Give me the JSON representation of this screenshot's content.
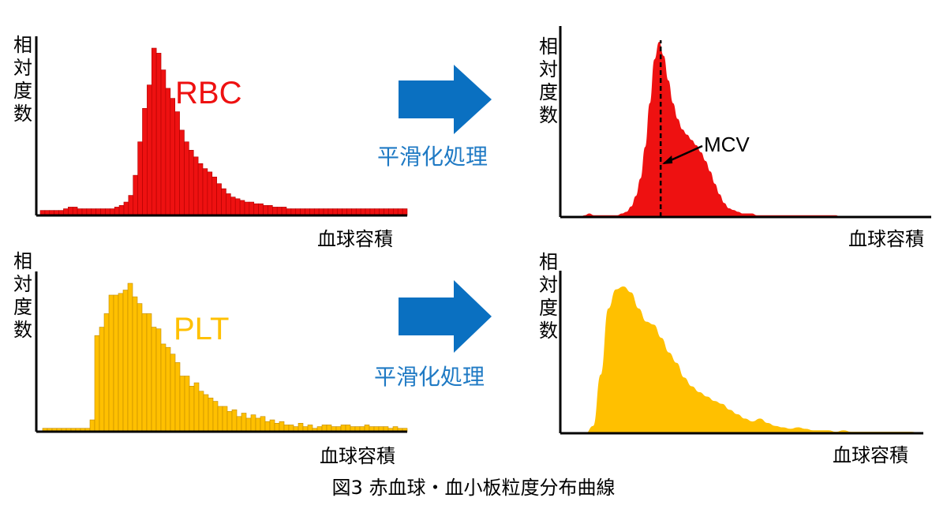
{
  "colors": {
    "rbc": "#ee1111",
    "plt": "#ffc000",
    "arrow": "#0a70c1",
    "label_blue": "#1f7ac4"
  },
  "y_label": "相対度数",
  "x_label": "血球容積",
  "smoothing_label": "平滑化処理",
  "caption": "図3 赤血球・血小板粒度分布曲線",
  "rbc": {
    "name": "RBC",
    "mcv_label": "MCV"
  },
  "plt": {
    "name": "PLT"
  },
  "chart_data": [
    {
      "type": "bar",
      "series_name": "RBC",
      "values": [
        3,
        3,
        3,
        3,
        3,
        4,
        5,
        5,
        4,
        4,
        4,
        4,
        4,
        4,
        4,
        4,
        5,
        6,
        8,
        12,
        24,
        44,
        64,
        78,
        100,
        97,
        87,
        76,
        70,
        62,
        51,
        44,
        39,
        35,
        31,
        28,
        26,
        23,
        19,
        16,
        13,
        11,
        10,
        9,
        8,
        8,
        7,
        7,
        6,
        6,
        5,
        5,
        5,
        4,
        4,
        4,
        4,
        4,
        4,
        4,
        4,
        4,
        4,
        4,
        4,
        4,
        4,
        4,
        4,
        4,
        4,
        4,
        4,
        4,
        4,
        4,
        4,
        4,
        4
      ]
    },
    {
      "type": "area",
      "series_name": "RBC smoothed",
      "values": [
        0,
        1,
        2,
        1,
        1,
        1,
        1,
        1,
        1,
        2,
        3,
        6,
        12,
        22,
        40,
        65,
        90,
        100,
        92,
        78,
        65,
        56,
        50,
        47,
        44,
        41,
        37,
        32,
        26,
        19,
        13,
        8,
        5,
        4,
        3,
        2,
        2,
        2,
        1,
        1,
        1,
        1,
        1,
        1,
        1,
        1,
        1,
        1,
        1,
        1,
        1,
        1,
        1,
        1,
        1,
        1,
        0
      ],
      "annotation": "MCV",
      "mcv_index": 17
    },
    {
      "type": "bar",
      "series_name": "PLT",
      "values": [
        2,
        2,
        2,
        2,
        2,
        2,
        2,
        2,
        2,
        2,
        7,
        57,
        62,
        70,
        81,
        81,
        82,
        84,
        88,
        80,
        76,
        70,
        70,
        62,
        61,
        52,
        50,
        46,
        41,
        33,
        33,
        27,
        29,
        24,
        22,
        20,
        18,
        15,
        15,
        12,
        13,
        9,
        11,
        8,
        10,
        8,
        9,
        6,
        7,
        5,
        6,
        4,
        4,
        3,
        5,
        3,
        4,
        2,
        3,
        4,
        4,
        3,
        3,
        4,
        4,
        3,
        3,
        3,
        4,
        3,
        3,
        3,
        3,
        2,
        3,
        2,
        2
      ]
    },
    {
      "type": "area",
      "series_name": "PLT smoothed",
      "values": [
        0,
        5,
        40,
        85,
        98,
        100,
        96,
        85,
        76,
        74,
        65,
        55,
        48,
        38,
        32,
        28,
        25,
        22,
        20,
        16,
        13,
        10,
        8,
        10,
        7,
        5,
        4,
        3,
        4,
        3,
        2,
        2,
        2,
        1,
        2,
        1,
        1,
        1,
        1,
        1,
        1,
        1,
        1,
        1,
        0
      ]
    }
  ]
}
